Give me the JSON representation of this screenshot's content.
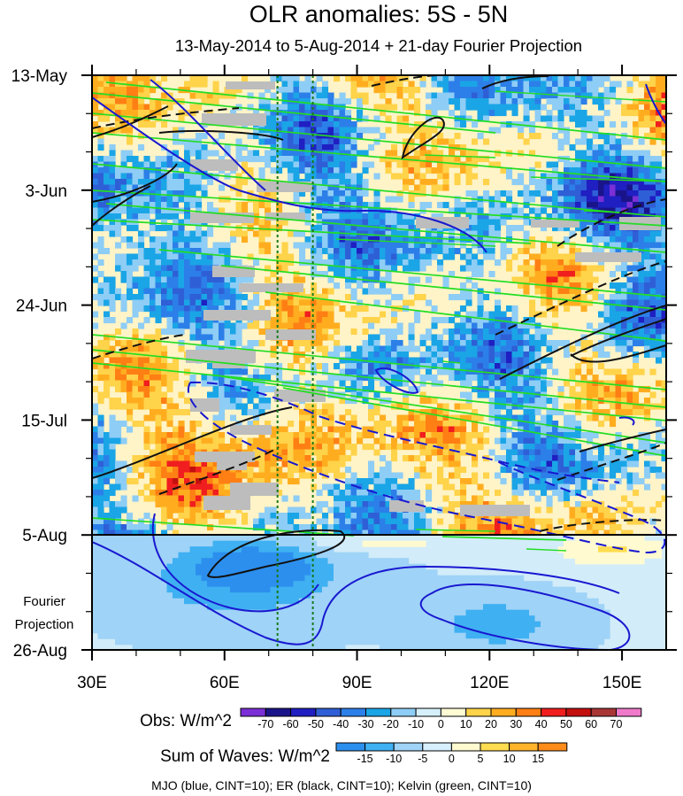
{
  "chart_data": {
    "type": "heatmap",
    "title": "OLR anomalies: 5S - 5N",
    "subtitle": "13-May-2014 to 5-Aug-2014 + 21-day Fourier Projection",
    "x_axis": {
      "label": "",
      "range": [
        30,
        160
      ],
      "ticks": [
        {
          "value": 30,
          "label": "30E"
        },
        {
          "value": 60,
          "label": "60E"
        },
        {
          "value": 90,
          "label": "90E"
        },
        {
          "value": 120,
          "label": "120E"
        },
        {
          "value": 150,
          "label": "150E"
        }
      ]
    },
    "y_axis": {
      "label": "",
      "range_days": [
        0,
        105
      ],
      "ticks": [
        {
          "day": 0,
          "label": "13-May"
        },
        {
          "day": 21,
          "label": "3-Jun"
        },
        {
          "day": 42,
          "label": "24-Jun"
        },
        {
          "day": 63,
          "label": "15-Jul"
        },
        {
          "day": 84,
          "label": "5-Aug"
        },
        {
          "day": 105,
          "label": "26-Aug"
        }
      ],
      "projection_label_line1": "Fourier",
      "projection_label_line2": "Projection",
      "observation_end_day": 84
    },
    "reference_longitudes": [
      72,
      80
    ],
    "obs_colorbar": {
      "label": "Obs: W/m^2",
      "levels": [
        "-70",
        "-60",
        "-50",
        "-40",
        "-30",
        "-20",
        "-10",
        "0",
        "10",
        "20",
        "30",
        "40",
        "50",
        "60",
        "70"
      ],
      "colors": [
        "#7b2fd6",
        "#1a148a",
        "#1f1fc2",
        "#2f5fd6",
        "#2c7fe8",
        "#1aa5e6",
        "#8ecdf5",
        "#d6f0fb",
        "#fffbd4",
        "#ffd34a",
        "#ffad1f",
        "#ff7f14",
        "#f01e1e",
        "#c40f0f",
        "#a83636",
        "#f07aca"
      ]
    },
    "waves_colorbar": {
      "label": "Sum of Waves: W/m^2",
      "levels": [
        "-15",
        "-10",
        "-5",
        "0",
        "5",
        "10",
        "15"
      ],
      "colors": [
        "#2c8fee",
        "#3fb0f2",
        "#9fd3f7",
        "#d8efff",
        "#fffad0",
        "#ffdc50",
        "#ffb42a",
        "#ff8c1a"
      ]
    },
    "contour_legend": "MJO (blue, CINT=10); ER (black, CINT=10); Kelvin (green, CINT=10)",
    "series": [
      {
        "name": "MJO",
        "color": "blue",
        "cint": 10
      },
      {
        "name": "ER",
        "color": "black",
        "cint": 10
      },
      {
        "name": "Kelvin",
        "color": "green",
        "cint": 10
      }
    ]
  }
}
